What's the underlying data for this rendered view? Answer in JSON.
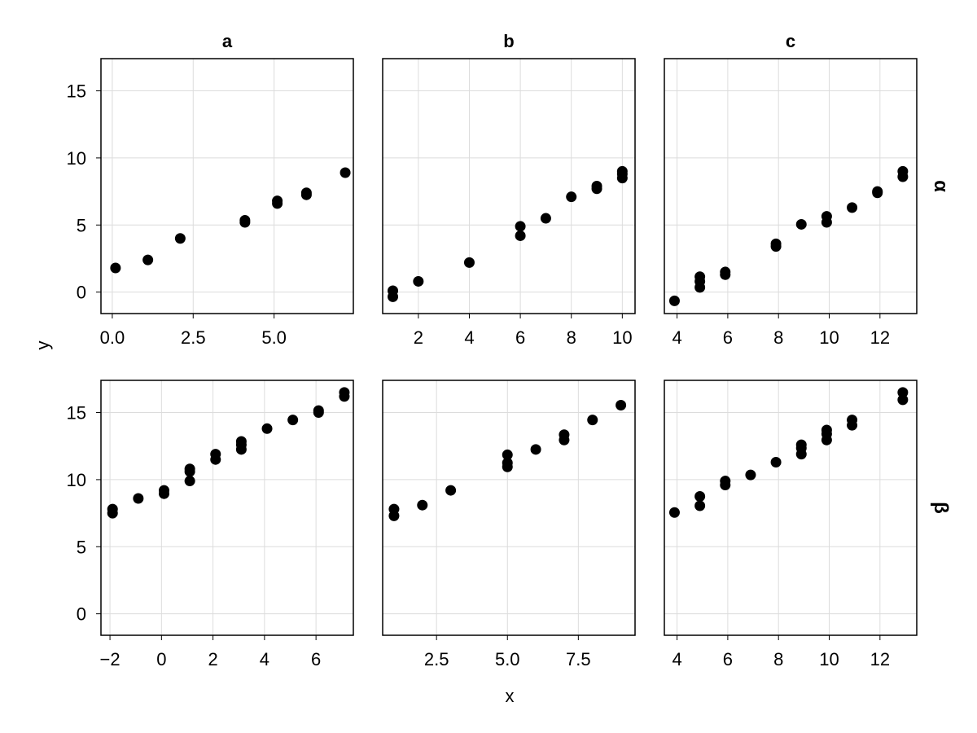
{
  "chart_data": {
    "type": "scatter",
    "layout": "facet-grid 2 rows x 3 columns",
    "xlabel": "x",
    "ylabel": "y",
    "column_titles": [
      "a",
      "b",
      "c"
    ],
    "row_titles": [
      "α",
      "β"
    ],
    "shared_y": true,
    "ylim": [
      -1.6,
      17.4
    ],
    "y_ticks": [
      0,
      5,
      10,
      15
    ],
    "grid": true,
    "marker_color": "#000000",
    "panels": [
      {
        "row": "α",
        "col": "a",
        "xlim": [
          -0.35,
          7.45
        ],
        "x_ticks": [
          0,
          2.5,
          5
        ],
        "x_tick_labels": [
          "0.0",
          "2.5",
          "5.0"
        ],
        "points": [
          [
            0.1,
            1.8
          ],
          [
            1.1,
            2.4
          ],
          [
            2.1,
            4.0
          ],
          [
            4.1,
            5.2
          ],
          [
            4.1,
            5.35
          ],
          [
            5.1,
            6.6
          ],
          [
            5.1,
            6.8
          ],
          [
            6.0,
            7.25
          ],
          [
            6.0,
            7.4
          ],
          [
            7.2,
            8.9
          ]
        ]
      },
      {
        "row": "α",
        "col": "b",
        "xlim": [
          0.6,
          10.5
        ],
        "x_ticks": [
          2,
          4,
          6,
          8,
          10
        ],
        "x_tick_labels": [
          "2",
          "4",
          "6",
          "8",
          "10"
        ],
        "points": [
          [
            1,
            -0.35
          ],
          [
            1,
            0.1
          ],
          [
            2,
            0.8
          ],
          [
            4,
            2.2
          ],
          [
            6,
            4.2
          ],
          [
            6,
            4.9
          ],
          [
            7,
            5.5
          ],
          [
            8,
            7.1
          ],
          [
            9,
            7.7
          ],
          [
            9,
            7.9
          ],
          [
            10,
            8.5
          ],
          [
            10,
            8.8
          ],
          [
            10,
            9.0
          ]
        ]
      },
      {
        "row": "α",
        "col": "c",
        "xlim": [
          3.5,
          13.45
        ],
        "x_ticks": [
          4,
          6,
          8,
          10,
          12
        ],
        "x_tick_labels": [
          "4",
          "6",
          "8",
          "10",
          "12"
        ],
        "points": [
          [
            3.9,
            -0.65
          ],
          [
            4.9,
            0.35
          ],
          [
            4.9,
            0.8
          ],
          [
            4.9,
            1.15
          ],
          [
            5.9,
            1.3
          ],
          [
            5.9,
            1.5
          ],
          [
            7.9,
            3.4
          ],
          [
            7.9,
            3.6
          ],
          [
            8.9,
            5.05
          ],
          [
            9.9,
            5.2
          ],
          [
            9.9,
            5.65
          ],
          [
            10.9,
            6.3
          ],
          [
            11.9,
            7.4
          ],
          [
            11.9,
            7.5
          ],
          [
            12.9,
            8.6
          ],
          [
            12.9,
            9.0
          ]
        ]
      },
      {
        "row": "β",
        "col": "a",
        "xlim": [
          -2.35,
          7.45
        ],
        "x_ticks": [
          -2,
          0,
          2,
          4,
          6
        ],
        "x_tick_labels": [
          "−2",
          "0",
          "2",
          "4",
          "6"
        ],
        "points": [
          [
            -1.9,
            7.5
          ],
          [
            -1.9,
            7.8
          ],
          [
            -0.9,
            8.6
          ],
          [
            0.1,
            8.95
          ],
          [
            0.1,
            9.2
          ],
          [
            1.1,
            9.9
          ],
          [
            1.1,
            10.6
          ],
          [
            1.1,
            10.8
          ],
          [
            2.1,
            11.5
          ],
          [
            2.1,
            11.9
          ],
          [
            3.1,
            12.25
          ],
          [
            3.1,
            12.6
          ],
          [
            3.1,
            12.85
          ],
          [
            4.1,
            13.8
          ],
          [
            5.1,
            14.45
          ],
          [
            6.1,
            15.0
          ],
          [
            6.1,
            15.15
          ],
          [
            7.1,
            16.2
          ],
          [
            7.1,
            16.5
          ]
        ]
      },
      {
        "row": "β",
        "col": "b",
        "xlim": [
          0.6,
          9.5
        ],
        "x_ticks": [
          2.5,
          5,
          7.5
        ],
        "x_tick_labels": [
          "2.5",
          "5.0",
          "7.5"
        ],
        "points": [
          [
            1,
            7.3
          ],
          [
            1,
            7.8
          ],
          [
            2,
            8.1
          ],
          [
            3,
            9.2
          ],
          [
            5,
            10.95
          ],
          [
            5,
            11.25
          ],
          [
            5,
            11.85
          ],
          [
            6,
            12.25
          ],
          [
            7,
            12.95
          ],
          [
            7,
            13.35
          ],
          [
            8,
            14.45
          ],
          [
            9,
            15.55
          ]
        ]
      },
      {
        "row": "β",
        "col": "c",
        "xlim": [
          3.5,
          13.45
        ],
        "x_ticks": [
          4,
          6,
          8,
          10,
          12
        ],
        "x_tick_labels": [
          "4",
          "6",
          "8",
          "10",
          "12"
        ],
        "points": [
          [
            3.9,
            7.55
          ],
          [
            4.9,
            8.05
          ],
          [
            4.9,
            8.75
          ],
          [
            5.9,
            9.6
          ],
          [
            5.9,
            9.9
          ],
          [
            6.9,
            10.35
          ],
          [
            7.9,
            11.3
          ],
          [
            8.9,
            11.9
          ],
          [
            8.9,
            12.35
          ],
          [
            8.9,
            12.6
          ],
          [
            9.9,
            12.95
          ],
          [
            9.9,
            13.4
          ],
          [
            9.9,
            13.7
          ],
          [
            10.9,
            14.05
          ],
          [
            10.9,
            14.45
          ],
          [
            12.9,
            15.95
          ],
          [
            12.9,
            16.5
          ]
        ]
      }
    ]
  }
}
